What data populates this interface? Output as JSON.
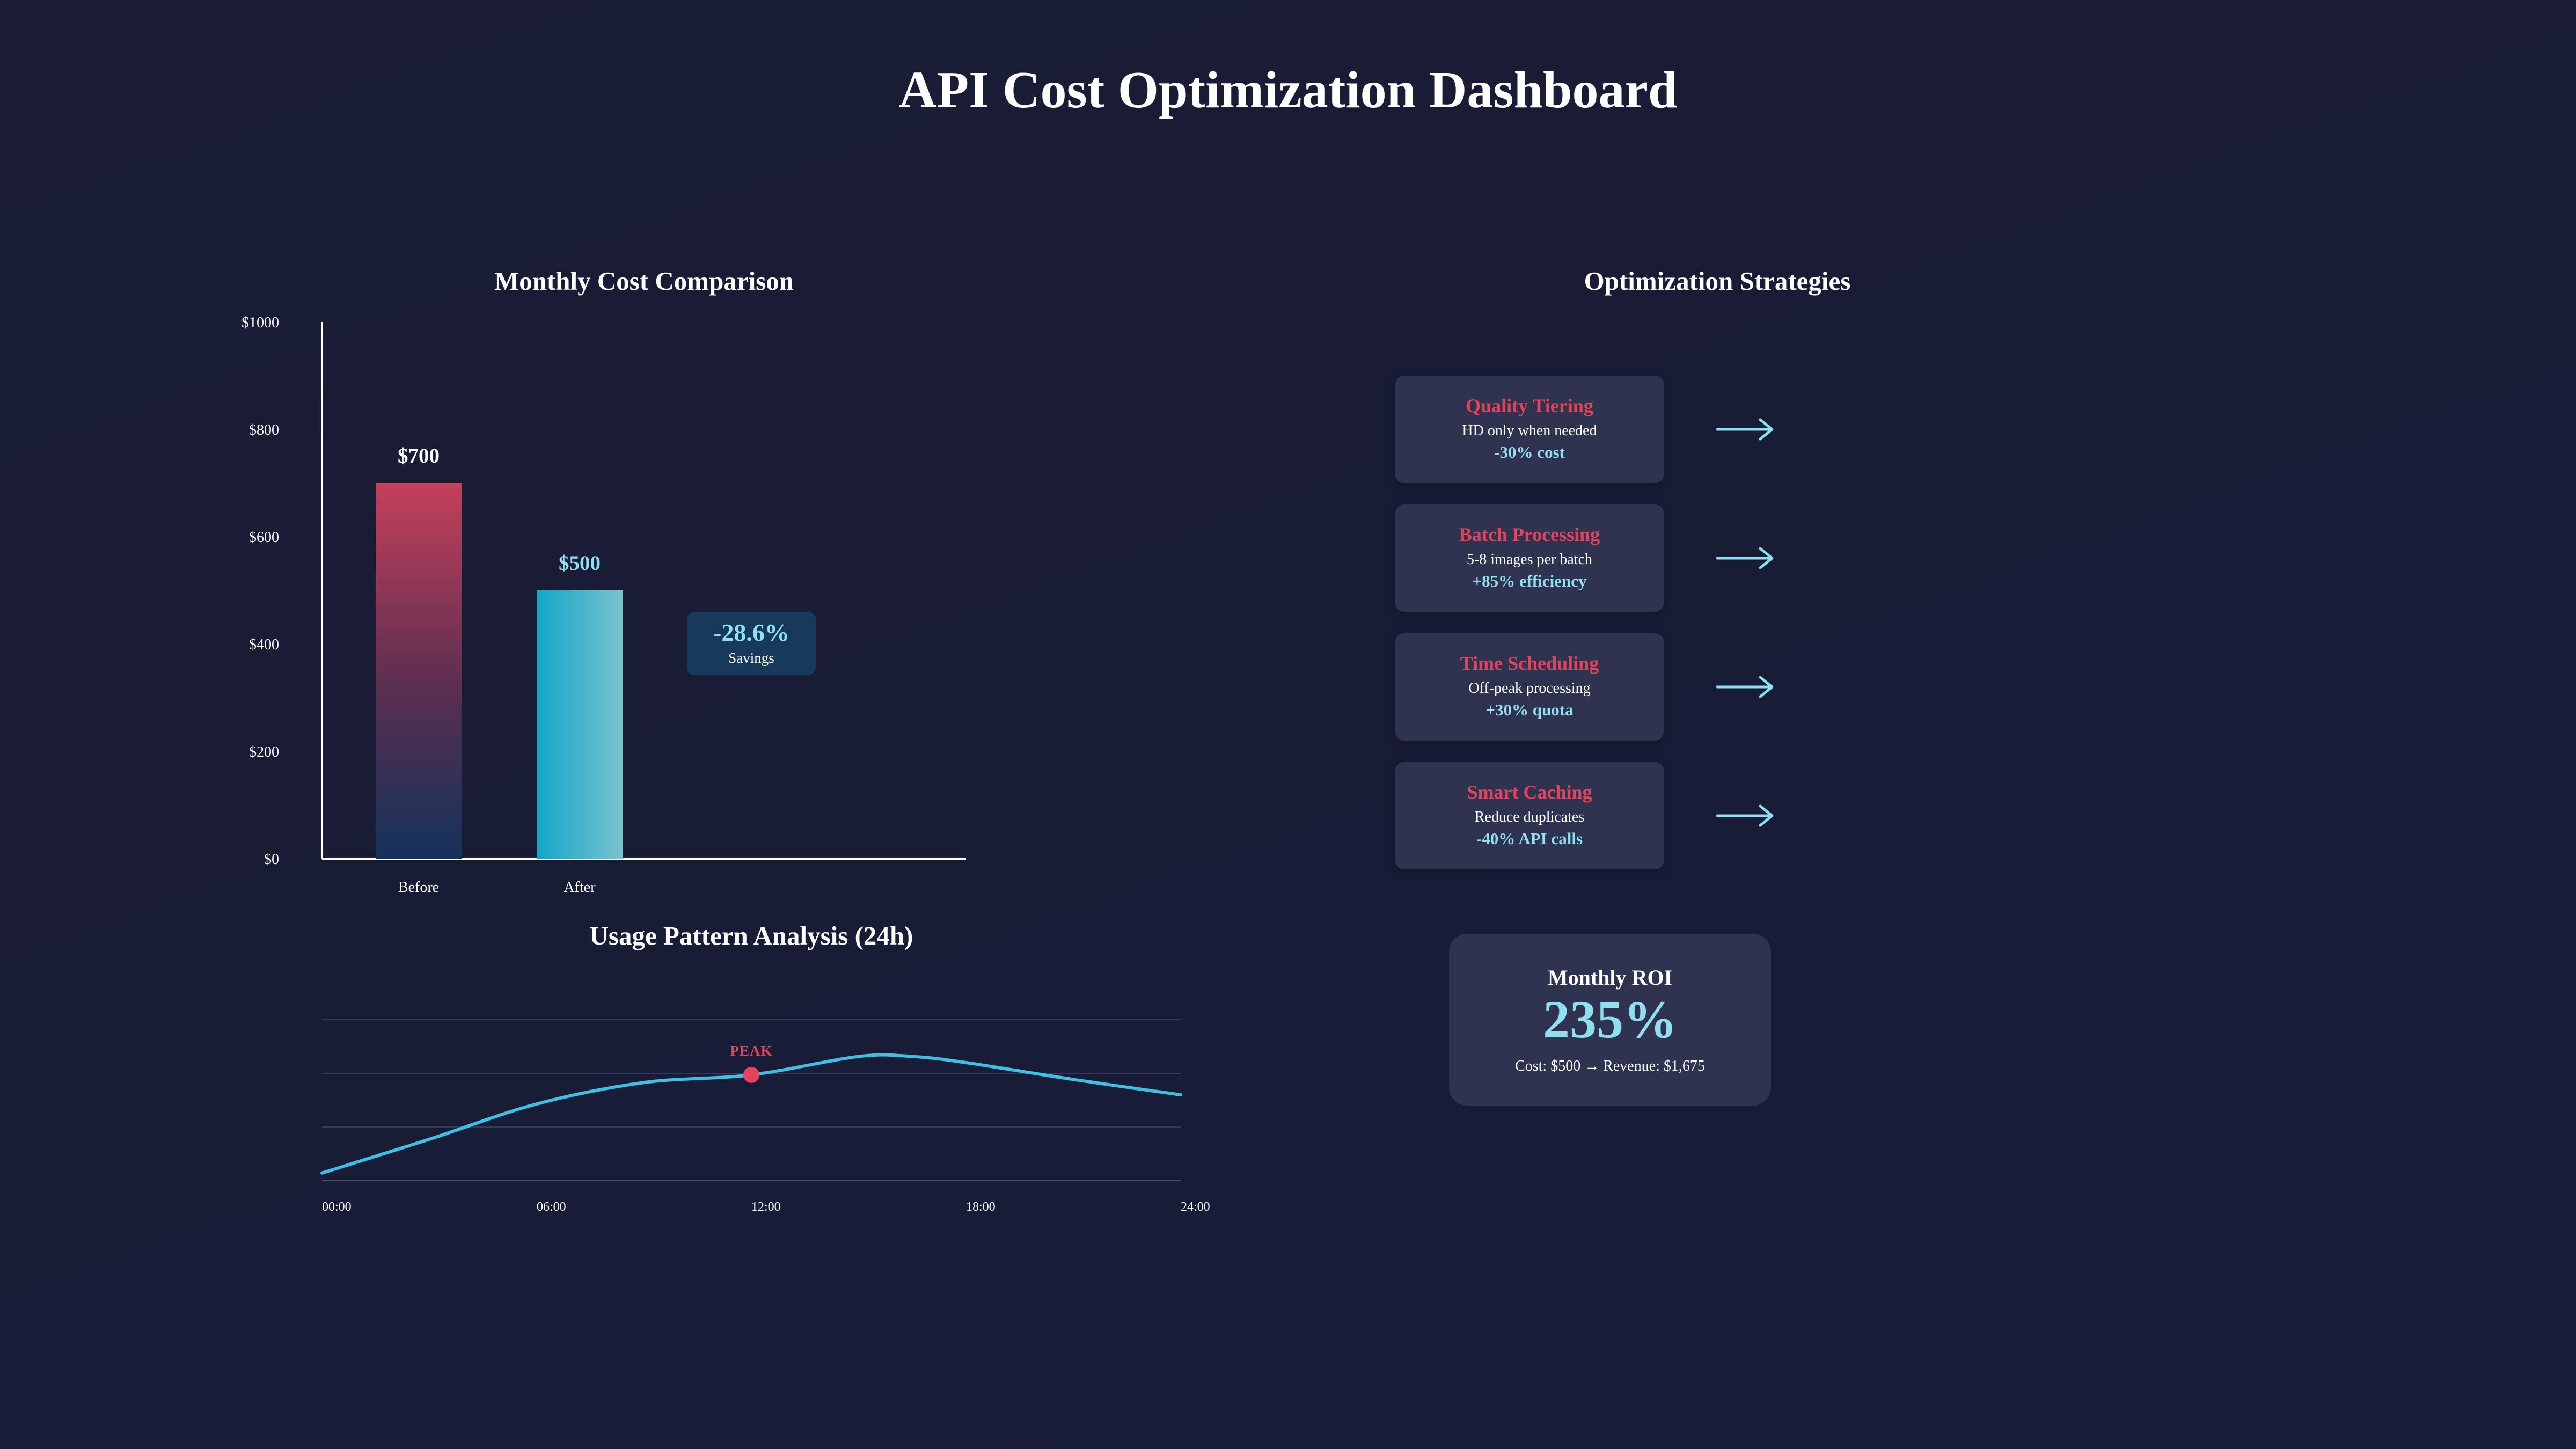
{
  "title": "API Cost Optimization Dashboard",
  "cost_chart": {
    "title": "Monthly Cost Comparison",
    "savings_value": "-28.6%",
    "savings_label": "Savings"
  },
  "usage_chart": {
    "title": "Usage Pattern Analysis (24h)",
    "peak_label": "PEAK"
  },
  "strategies": {
    "title": "Optimization Strategies",
    "items": [
      {
        "title": "Quality Tiering",
        "desc": "HD only when needed",
        "metric": "-30% cost"
      },
      {
        "title": "Batch Processing",
        "desc": "5-8 images per batch",
        "metric": "+85% efficiency"
      },
      {
        "title": "Time Scheduling",
        "desc": "Off-peak processing",
        "metric": "+30% quota"
      },
      {
        "title": "Smart Caching",
        "desc": "Reduce duplicates",
        "metric": "-40% API calls"
      }
    ]
  },
  "roi": {
    "label": "Monthly ROI",
    "value": "235%",
    "detail": "Cost: $500 → Revenue: $1,675"
  },
  "colors": {
    "accent_red": "#e5435d",
    "accent_cyan": "#8fdff0",
    "line_cyan": "#3fbfe2",
    "card_bg": "#30334f"
  },
  "chart_data": [
    {
      "type": "bar",
      "title": "Monthly Cost Comparison",
      "categories": [
        "Before",
        "After"
      ],
      "values": [
        700,
        500
      ],
      "value_labels": [
        "$700",
        "$500"
      ],
      "ylim": [
        0,
        1000
      ],
      "yticks": [
        0,
        200,
        400,
        600,
        800,
        1000
      ],
      "ytick_labels": [
        "$0",
        "$200",
        "$400",
        "$600",
        "$800",
        "$1000"
      ],
      "grid": false
    },
    {
      "type": "line",
      "title": "Usage Pattern Analysis (24h)",
      "x": [
        0,
        3,
        6,
        9,
        12,
        15,
        16.5,
        18,
        21,
        24
      ],
      "values": [
        0,
        0.22,
        0.45,
        0.59,
        0.64,
        0.76,
        0.76,
        0.72,
        0.61,
        0.51
      ],
      "xlim": [
        0,
        24
      ],
      "ylim": [
        -0.05,
        1.0
      ],
      "xtick_values": [
        0,
        6,
        12,
        18,
        24
      ],
      "xtick_labels": [
        "00:00",
        "06:00",
        "12:00",
        "18:00",
        "24:00"
      ],
      "peak": {
        "x": 12,
        "value": 0.64,
        "label": "PEAK"
      },
      "grid": true
    }
  ]
}
